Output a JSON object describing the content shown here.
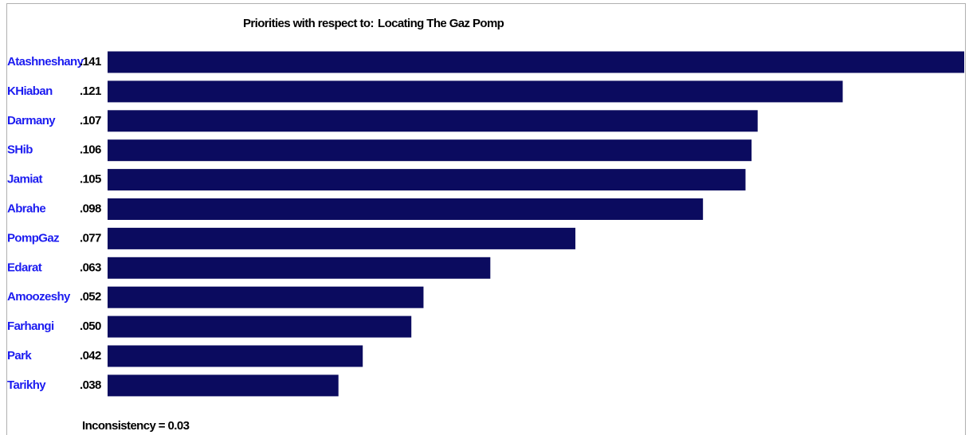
{
  "chart_data": {
    "type": "bar",
    "orientation": "horizontal",
    "title": "Priorities with respect to:",
    "subtitle": "Locating The Gaz Pomp",
    "categories": [
      "Atashneshany",
      "KHiaban",
      "Darmany",
      "SHib",
      "Jamiat",
      "Abrahe",
      "PompGaz",
      "Edarat",
      "Amoozeshy",
      "Farhangi",
      "Park",
      "Tarikhy"
    ],
    "values": [
      0.141,
      0.121,
      0.107,
      0.106,
      0.105,
      0.098,
      0.077,
      0.063,
      0.052,
      0.05,
      0.042,
      0.038
    ],
    "value_labels": [
      ".141",
      ".121",
      ".107",
      ".106",
      ".105",
      ".098",
      ".077",
      ".063",
      ".052",
      ".050",
      ".042",
      ".038"
    ],
    "color": "#0b0b5f",
    "label_color": "#1c1cf0",
    "footnote": "Inconsistency = 0.03"
  }
}
